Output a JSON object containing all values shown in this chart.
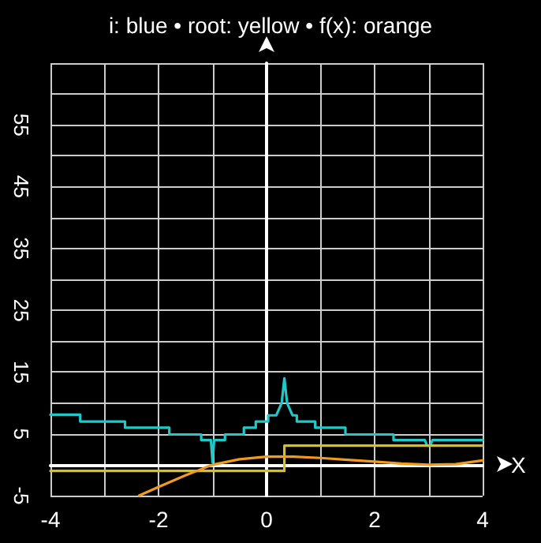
{
  "chart_data": {
    "type": "line",
    "title": "i: blue • root: yellow • f(x): orange",
    "xlabel": "X",
    "xlim": [
      -4,
      4
    ],
    "xticks": [
      -4,
      {
        "value": -3,
        "label": null
      },
      -2,
      {
        "value": -1,
        "label": null
      },
      0,
      {
        "value": 1,
        "label": null
      },
      2,
      {
        "value": 3,
        "label": null
      },
      4
    ],
    "ylim": [
      -5,
      65
    ],
    "yticks": [
      -5,
      {
        "value": 0,
        "label": null
      },
      5,
      {
        "value": 10,
        "label": null
      },
      15,
      {
        "value": 20,
        "label": null
      },
      25,
      {
        "value": 30,
        "label": null
      },
      35,
      {
        "value": 40,
        "label": null
      },
      45,
      {
        "value": 50,
        "label": null
      },
      55,
      {
        "value": 60,
        "label": null
      },
      {
        "value": 65,
        "label": null
      }
    ],
    "grid": true,
    "marker": "none",
    "line_style": "solid",
    "series": [
      {
        "color": "#22c8c8",
        "x": [
          -4,
          -3.45,
          -3.45,
          -2.62,
          -2.62,
          -1.8,
          -1.8,
          -1.21,
          -1.21,
          -1.03,
          -1,
          -0.97,
          -0.77,
          -0.77,
          -0.42,
          -0.42,
          -0.2,
          -0.2,
          0.03,
          0.03,
          0.18,
          0.28,
          0.33,
          0.38,
          0.48,
          0.56,
          0.56,
          0.9,
          0.9,
          1.46,
          1.46,
          2.35,
          2.35,
          2.93,
          2.97,
          3.0,
          3.03,
          3.07,
          4
        ],
        "values": [
          8.1,
          8.1,
          7,
          7,
          6,
          6,
          4.9,
          4.9,
          4,
          4,
          0.4,
          4,
          4,
          4.9,
          4.9,
          6,
          6,
          7,
          7,
          8,
          8,
          10,
          14,
          10,
          8,
          8,
          7,
          7,
          6,
          6,
          4.9,
          4.9,
          4,
          4,
          3.1,
          3.1,
          3.1,
          4,
          4
        ]
      },
      {
        "color": "#d8c020",
        "x": [
          -4,
          0.33,
          0.33,
          4
        ],
        "values": [
          -1,
          -1,
          3.1,
          3.1
        ]
      },
      {
        "color": "#f09a20",
        "x": [
          -2.36,
          -2,
          -1.5,
          -1,
          -0.5,
          0,
          0.5,
          1,
          1.5,
          2,
          2.5,
          3,
          3.5,
          4
        ],
        "values": [
          -5,
          -3.6,
          -1.7,
          0,
          0.9,
          1.3,
          1.3,
          1.1,
          0.8,
          0.5,
          0.2,
          0,
          0.1,
          0.7
        ]
      }
    ]
  }
}
